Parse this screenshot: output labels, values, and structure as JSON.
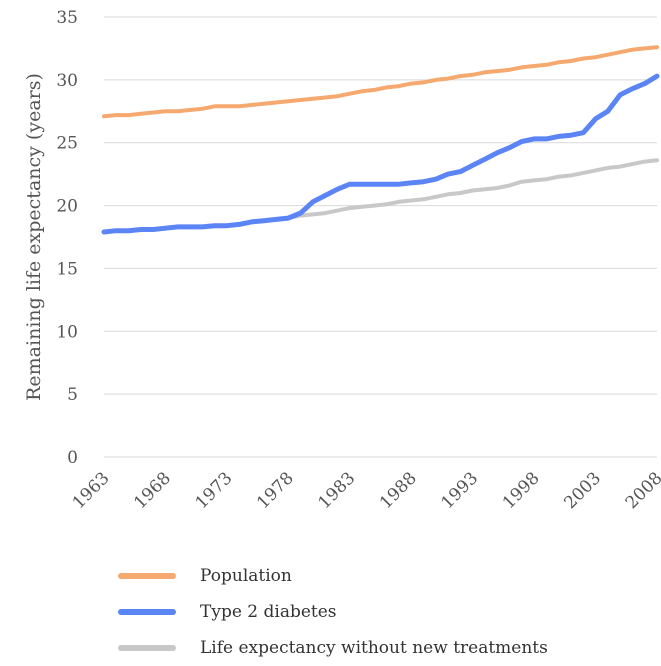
{
  "chart_data": {
    "type": "line",
    "title": "",
    "xlabel": "",
    "ylabel": "Remaining life expectancy (years)",
    "xlim": [
      1963,
      2008
    ],
    "ylim": [
      0,
      35
    ],
    "y_ticks": [
      0,
      5,
      10,
      15,
      20,
      25,
      30,
      35
    ],
    "x_ticks": [
      1963,
      1968,
      1973,
      1978,
      1983,
      1988,
      1993,
      1998,
      2003,
      2008
    ],
    "grid": "horizontal",
    "legend_position": "bottom",
    "series": [
      {
        "name": "Population",
        "color": "#F5A96F",
        "x": [
          1963,
          1964,
          1965,
          1966,
          1967,
          1968,
          1969,
          1970,
          1971,
          1972,
          1973,
          1974,
          1975,
          1976,
          1977,
          1978,
          1979,
          1980,
          1981,
          1982,
          1983,
          1984,
          1985,
          1986,
          1987,
          1988,
          1989,
          1990,
          1991,
          1992,
          1993,
          1994,
          1995,
          1996,
          1997,
          1998,
          1999,
          2000,
          2001,
          2002,
          2003,
          2004,
          2005,
          2006,
          2007,
          2008
        ],
        "values": [
          27.1,
          27.2,
          27.2,
          27.3,
          27.4,
          27.5,
          27.5,
          27.6,
          27.7,
          27.9,
          27.9,
          27.9,
          28.0,
          28.1,
          28.2,
          28.3,
          28.4,
          28.5,
          28.6,
          28.7,
          28.9,
          29.1,
          29.2,
          29.4,
          29.5,
          29.7,
          29.8,
          30.0,
          30.1,
          30.3,
          30.4,
          30.6,
          30.7,
          30.8,
          31.0,
          31.1,
          31.2,
          31.4,
          31.5,
          31.7,
          31.8,
          32.0,
          32.2,
          32.4,
          32.5,
          32.6
        ]
      },
      {
        "name": "Type 2 diabetes",
        "color": "#5B84F5",
        "x": [
          1963,
          1964,
          1965,
          1966,
          1967,
          1968,
          1969,
          1970,
          1971,
          1972,
          1973,
          1974,
          1975,
          1976,
          1977,
          1978,
          1979,
          1980,
          1981,
          1982,
          1983,
          1984,
          1985,
          1986,
          1987,
          1988,
          1989,
          1990,
          1991,
          1992,
          1993,
          1994,
          1995,
          1996,
          1997,
          1998,
          1999,
          2000,
          2001,
          2002,
          2003,
          2004,
          2005,
          2006,
          2007,
          2008
        ],
        "values": [
          17.9,
          18.0,
          18.0,
          18.1,
          18.1,
          18.2,
          18.3,
          18.3,
          18.3,
          18.4,
          18.4,
          18.5,
          18.7,
          18.8,
          18.9,
          19.0,
          19.4,
          20.3,
          20.8,
          21.3,
          21.7,
          21.7,
          21.7,
          21.7,
          21.7,
          21.8,
          21.9,
          22.1,
          22.5,
          22.7,
          23.2,
          23.7,
          24.2,
          24.6,
          25.1,
          25.3,
          25.3,
          25.5,
          25.6,
          25.8,
          26.9,
          27.5,
          28.8,
          29.3,
          29.7,
          30.3
        ]
      },
      {
        "name": "Life expectancy without new treatments",
        "color": "#C8C8C8",
        "x": [
          1978,
          1979,
          1980,
          1981,
          1982,
          1983,
          1984,
          1985,
          1986,
          1987,
          1988,
          1989,
          1990,
          1991,
          1992,
          1993,
          1994,
          1995,
          1996,
          1997,
          1998,
          1999,
          2000,
          2001,
          2002,
          2003,
          2004,
          2005,
          2006,
          2007,
          2008
        ],
        "values": [
          19.0,
          19.2,
          19.3,
          19.4,
          19.6,
          19.8,
          19.9,
          20.0,
          20.1,
          20.3,
          20.4,
          20.5,
          20.7,
          20.9,
          21.0,
          21.2,
          21.3,
          21.4,
          21.6,
          21.9,
          22.0,
          22.1,
          22.3,
          22.4,
          22.6,
          22.8,
          23.0,
          23.1,
          23.3,
          23.5,
          23.6
        ]
      }
    ]
  }
}
